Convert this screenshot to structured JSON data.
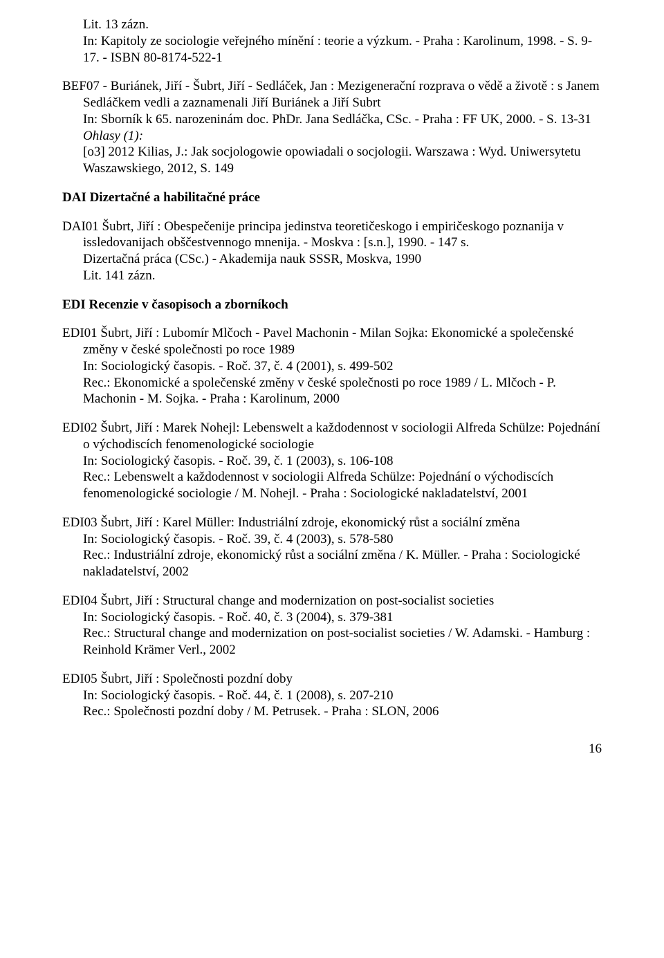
{
  "entry_bef06_tail": {
    "line1": "Lit. 13 zázn.",
    "line2": "In: Kapitoly ze sociologie veřejného mínění : teorie a výzkum. - Praha : Karolinum, 1998. - S. 9-17. - ISBN 80-8174-522-1"
  },
  "entry_bef07": {
    "l1": "BEF07 - Buriánek, Jiří - Šubrt, Jiří - Sedláček, Jan : Mezigenerační rozprava o vědě a životě : s Janem Sedláčkem vedli a zaznamenali Jiří Buriánek a Jiří Subrt",
    "l2": "In: Sborník k 65. narozeninám doc. PhDr. Jana Sedláčka, CSc. - Praha : FF UK, 2000. - S. 13-31",
    "ohlasy_label": "Ohlasy (1):",
    "ohlasy_text": "[o3] 2012 Kilias, J.: Jak socjologowie opowiadali o socjologii. Warszawa : Wyd. Uniwersytetu Waszawskiego, 2012, S. 149"
  },
  "heading_dai": "DAI Dizertačné a habilitačné práce",
  "entry_dai01": {
    "l1": "DAI01 Šubrt, Jiří : Obespečenije principa jedinstva teoretičeskogo i empiričeskogo poznanija v issledovanijach obščestvennogo mnenija. - Moskva : [s.n.], 1990. - 147 s.",
    "l2": "Dizertačná práca (CSc.) - Akademija nauk SSSR, Moskva, 1990",
    "l3": "Lit. 141 zázn."
  },
  "heading_edi": "EDI Recenzie v časopisoch a zborníkoch",
  "entry_edi01": {
    "l1": "EDI01 Šubrt, Jiří : Lubomír Mlčoch - Pavel Machonin - Milan Sojka: Ekonomické a společenské změny v české společnosti po roce 1989",
    "l2": "In: Sociologický časopis. - Roč. 37, č. 4 (2001), s. 499-502",
    "l3": "Rec.: Ekonomické a společenské změny v české společnosti po roce 1989 / L. Mlčoch - P. Machonin - M. Sojka. - Praha : Karolinum, 2000"
  },
  "entry_edi02": {
    "l1": "EDI02 Šubrt, Jiří : Marek Nohejl: Lebenswelt a každodennost v sociologii Alfreda Schülze: Pojednání o východiscích fenomenologické sociologie",
    "l2": "In: Sociologický časopis. - Roč. 39, č. 1 (2003), s. 106-108",
    "l3": "Rec.: Lebenswelt a každodennost v sociologii Alfreda Schülze: Pojednání o východiscích fenomenologické sociologie / M. Nohejl. - Praha : Sociologické nakladatelství, 2001"
  },
  "entry_edi03": {
    "l1": "EDI03 Šubrt, Jiří : Karel Müller: Industriální zdroje, ekonomický růst a sociální změna",
    "l2": "In: Sociologický časopis. - Roč. 39, č. 4 (2003), s. 578-580",
    "l3": "Rec.: Industriální zdroje, ekonomický růst a sociální změna / K. Müller. - Praha : Sociologické nakladatelství, 2002"
  },
  "entry_edi04": {
    "l1": "EDI04 Šubrt, Jiří : Structural change and modernization on post-socialist societies",
    "l2": "In: Sociologický časopis. - Roč. 40, č. 3 (2004), s. 379-381",
    "l3": "Rec.: Structural change and modernization on post-socialist societies / W. Adamski. - Hamburg : Reinhold Krämer Verl., 2002"
  },
  "entry_edi05": {
    "l1": "EDI05 Šubrt, Jiří : Společnosti pozdní doby",
    "l2": "In: Sociologický časopis. - Roč. 44, č. 1 (2008), s. 207-210",
    "l3": "Rec.: Společnosti pozdní doby / M. Petrusek. - Praha : SLON, 2006"
  },
  "page_number": "16"
}
